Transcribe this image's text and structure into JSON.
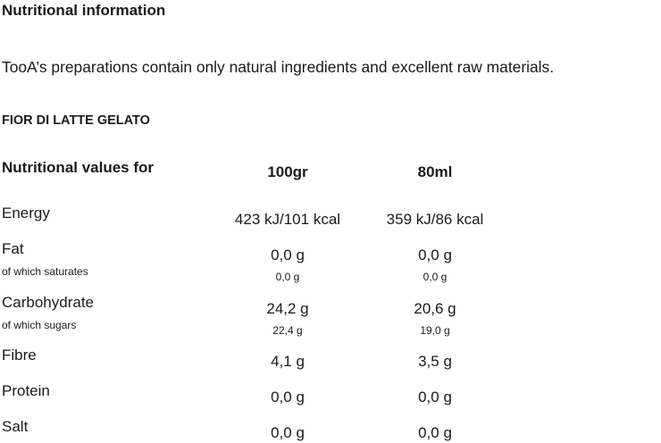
{
  "header": {
    "title": "Nutritional information",
    "intro": "TooA’s preparations contain only natural ingredients and excellent raw materials.",
    "product": "FIOR DI LATTE GELATO"
  },
  "table": {
    "columns": [
      "Nutritional values for",
      "100gr",
      "80ml"
    ],
    "rows": [
      {
        "label": "Energy",
        "values": [
          "423 kJ/101 kcal",
          "359 kJ/86 kcal"
        ]
      },
      {
        "label": "Fat",
        "values": [
          "0,0 g",
          "0,0 g"
        ],
        "sub": {
          "label": "of which saturates",
          "values": [
            "0,0 g",
            "0,0 g"
          ]
        }
      },
      {
        "label": "Carbohydrate",
        "values": [
          "24,2 g",
          "20,6 g"
        ],
        "sub": {
          "label": "of which sugars",
          "values": [
            "22,4 g",
            "19,0 g"
          ]
        }
      },
      {
        "label": "Fibre",
        "values": [
          "4,1 g",
          "3,5 g"
        ]
      },
      {
        "label": "Protein",
        "values": [
          "0,0 g",
          "0,0 g"
        ]
      },
      {
        "label": "Salt",
        "values": [
          "0,0 g",
          "0,0 g"
        ]
      }
    ]
  }
}
